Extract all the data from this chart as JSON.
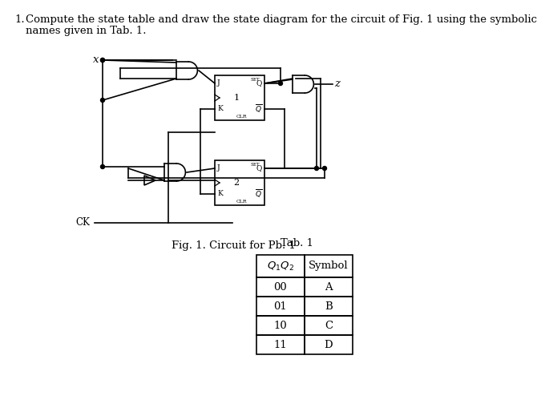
{
  "title_text": "1. Compute the state table and draw the state diagram for the circuit of Fig. 1 using the symbolic\n  names given in Tab. 1.",
  "fig_caption": "Fig. 1. Circuit for Pb. 1",
  "tab_caption": "Tab. 1",
  "table_headers": [
    "Q₁Q₂",
    "Symbol"
  ],
  "table_rows": [
    [
      "00",
      "A"
    ],
    [
      "01",
      "B"
    ],
    [
      "10",
      "C"
    ],
    [
      "11",
      "D"
    ]
  ],
  "bg_color": "#ffffff",
  "text_color": "#000000",
  "font_size": 9.5,
  "font_size_small": 7.5
}
